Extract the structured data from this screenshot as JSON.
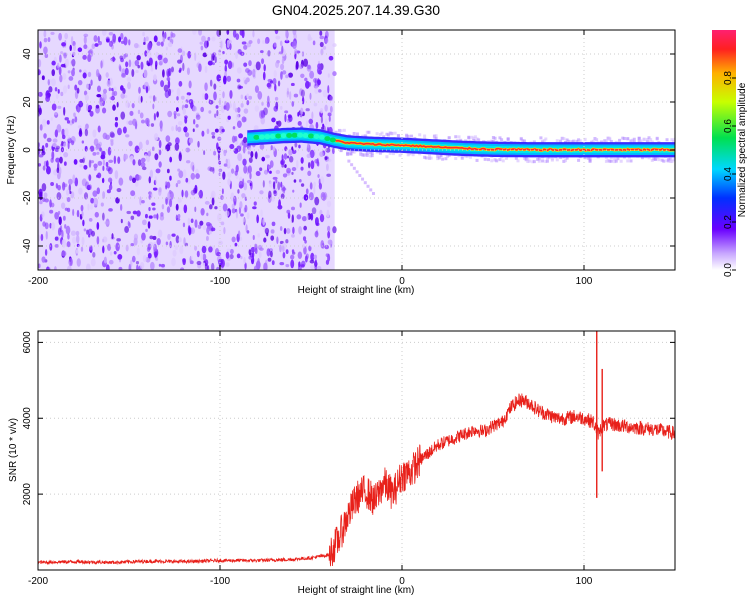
{
  "title": "GN04.2025.207.14.39.G30",
  "colors": {
    "spectral_low": "#6a0dff",
    "ridge_core": "#ff2a2a",
    "ridge_edge": "#00e6e6",
    "snr_line": "#e8201a",
    "frame": "#000000",
    "grid": "#cccccc"
  },
  "chart_data": [
    {
      "type": "heatmap",
      "panel": "spectrogram",
      "xlabel": "Height of straight line (km)",
      "ylabel": "Frequency (Hz)",
      "xlim": [
        -200,
        150
      ],
      "ylim": [
        -50,
        50
      ],
      "x_ticks": [
        -200,
        -100,
        0,
        100
      ],
      "y_ticks": [
        -40,
        -20,
        0,
        20,
        40
      ],
      "noise_region_x": [
        -200,
        -37
      ],
      "ridge": {
        "x": [
          -85,
          -75,
          -65,
          -55,
          -45,
          -37,
          -30,
          -20,
          -10,
          0,
          10,
          20,
          30,
          40,
          50,
          60,
          70,
          80,
          90,
          100,
          110,
          120,
          130,
          140,
          150
        ],
        "frequency": [
          5,
          5.5,
          6,
          6.2,
          5.5,
          4,
          3,
          2.5,
          2.2,
          2,
          1.6,
          1.2,
          0.8,
          0.5,
          0.3,
          0.2,
          0.1,
          0.1,
          0.1,
          0.1,
          0.1,
          0.1,
          0.1,
          0.1,
          0.1
        ]
      },
      "colorbar": {
        "label": "Normalized spectral amplitude",
        "range": [
          0.0,
          1.0
        ],
        "ticks": [
          "0.0",
          "0.2",
          "0.4",
          "0.6",
          "0.8"
        ]
      },
      "grid": true
    },
    {
      "type": "line",
      "panel": "snr",
      "xlabel": "Height of straight line (km)",
      "ylabel": "SNR (10 * v/v)",
      "xlim": [
        -200,
        150
      ],
      "ylim": [
        0,
        6300
      ],
      "x_ticks": [
        -200,
        -100,
        0,
        100
      ],
      "y_ticks": [
        2000,
        4000,
        6000
      ],
      "series": [
        {
          "x": [
            -200,
            -180,
            -160,
            -140,
            -120,
            -100,
            -80,
            -60,
            -50,
            -40,
            -35,
            -30,
            -25,
            -20,
            -15,
            -10,
            -5,
            0,
            5,
            10,
            15,
            20,
            25,
            30,
            35,
            40,
            45,
            50,
            55,
            60,
            65,
            70,
            75,
            80,
            85,
            90,
            95,
            100,
            105,
            108,
            110,
            115,
            120,
            130,
            140,
            150
          ],
          "y": [
            200,
            220,
            200,
            230,
            220,
            250,
            250,
            280,
            320,
            400,
            800,
            1400,
            1900,
            2100,
            1800,
            2300,
            2000,
            2500,
            2600,
            2900,
            3100,
            3300,
            3400,
            3500,
            3600,
            3700,
            3650,
            3800,
            3900,
            4300,
            4500,
            4400,
            4200,
            4100,
            4000,
            4000,
            4050,
            4000,
            3900,
            3600,
            3800,
            3850,
            3800,
            3750,
            3700,
            3600
          ]
        }
      ],
      "spikes": [
        {
          "x": 107,
          "y_min": 1900,
          "y_max": 6300
        },
        {
          "x": 110,
          "y_min": 2600,
          "y_max": 5300
        }
      ],
      "grid": true
    }
  ]
}
